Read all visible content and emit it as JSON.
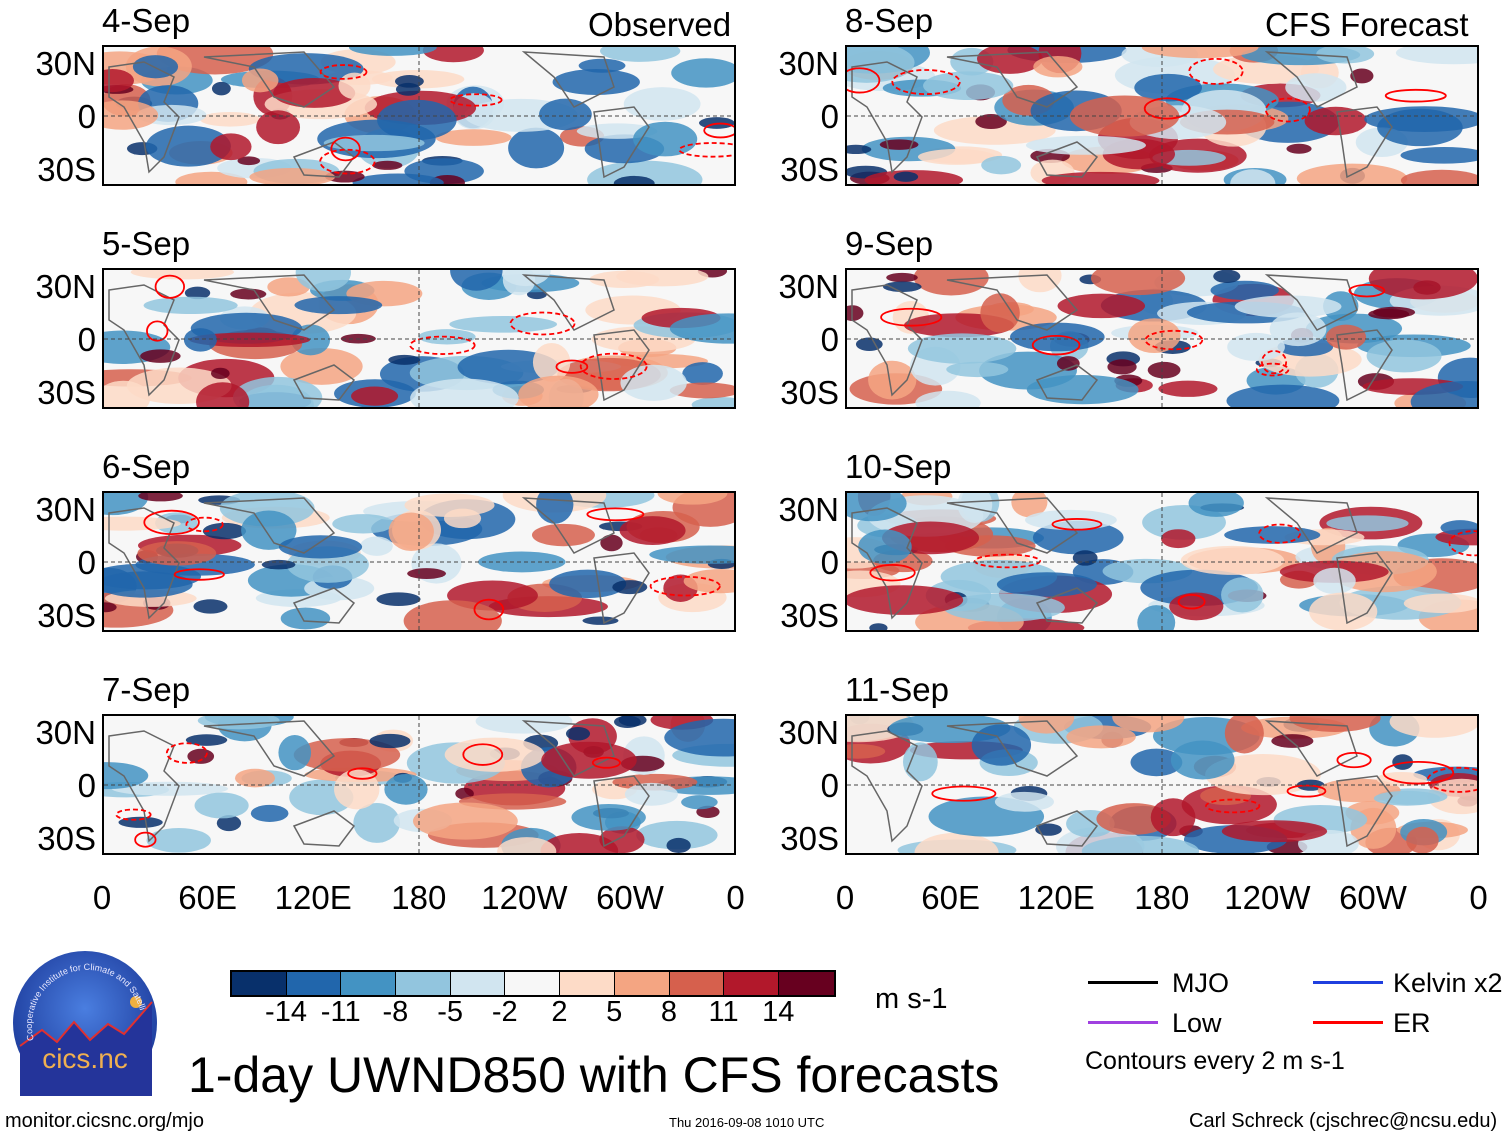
{
  "headers": {
    "observed": "Observed",
    "forecast": "CFS Forecast"
  },
  "panels": {
    "left": [
      "4-Sep",
      "5-Sep",
      "6-Sep",
      "7-Sep"
    ],
    "right": [
      "8-Sep",
      "9-Sep",
      "10-Sep",
      "11-Sep"
    ]
  },
  "lat_ticks": [
    "30N",
    "0",
    "30S"
  ],
  "lon_ticks": [
    "0",
    "60E",
    "120E",
    "180",
    "120W",
    "60W",
    "0"
  ],
  "colorbar": {
    "colors": [
      "#08306b",
      "#2166ac",
      "#4393c3",
      "#92c5de",
      "#d1e5f0",
      "#f7f7f7",
      "#fddbc7",
      "#f4a582",
      "#d6604d",
      "#b2182b",
      "#67001f"
    ],
    "ticks": [
      "-14",
      "-11",
      "-8",
      "-5",
      "-2",
      "2",
      "5",
      "8",
      "11",
      "14"
    ],
    "units": "m s-1"
  },
  "legend": {
    "items": [
      {
        "label": "MJO",
        "color": "#000000"
      },
      {
        "label": "Kelvin x2",
        "color": "#1f3fdf"
      },
      {
        "label": "Low",
        "color": "#a040e0"
      },
      {
        "label": "ER",
        "color": "#ff0000"
      }
    ],
    "note": "Contours every 2 m s-1"
  },
  "logo": {
    "text": "cics.nc",
    "ring": "Cooperative Institute for Climate and Satellites"
  },
  "title": "1-day UWND850 with CFS forecasts",
  "footer": {
    "url": "monitor.cicsnc.org/mjo",
    "timestamp": "Thu 2016-09-08 1010 UTC",
    "credit": "Carl Schreck (cjschrec@ncsu.edu)"
  }
}
